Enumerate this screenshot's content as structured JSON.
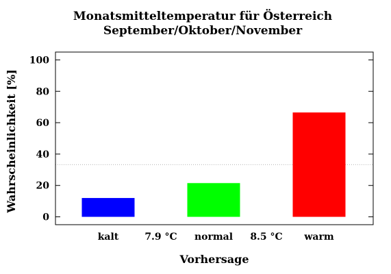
{
  "chart_data": {
    "type": "bar",
    "title": [
      "Monatsmitteltemperatur für Österreich",
      "September/Oktober/November"
    ],
    "xlabel": "Vorhersage",
    "ylabel": "Wahrscheinlichkeit [%]",
    "ylim": [
      -5,
      105
    ],
    "yticks": [
      0,
      20,
      40,
      60,
      80,
      100
    ],
    "grid": false,
    "categories": [
      "kalt",
      "normal",
      "warm"
    ],
    "values": [
      12,
      21.5,
      66.5
    ],
    "colors": [
      "#0000ff",
      "#00ff00",
      "#ff0000"
    ],
    "thresholds": [
      "7.9 °C",
      "8.5 °C"
    ],
    "reference_line": 33.3
  }
}
